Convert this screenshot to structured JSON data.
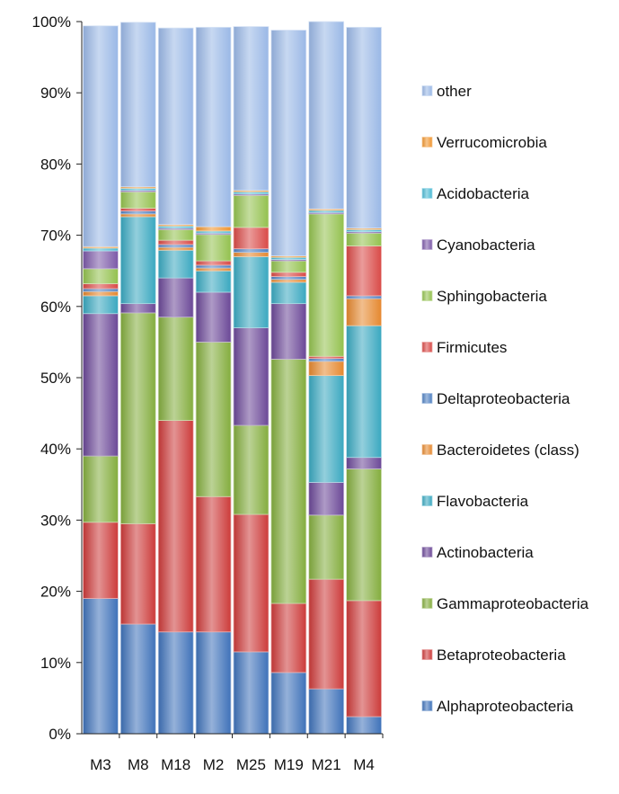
{
  "chart_data": {
    "type": "bar",
    "stacked": true,
    "orientation": "vertical",
    "categories": [
      "M3",
      "M8",
      "M18",
      "M2",
      "M25",
      "M19",
      "M21",
      "M4"
    ],
    "y_ticks": [
      "0%",
      "10%",
      "20%",
      "30%",
      "40%",
      "50%",
      "60%",
      "70%",
      "80%",
      "90%",
      "100%"
    ],
    "ylim": [
      0,
      100
    ],
    "grid": false,
    "legend_position": "right",
    "series": [
      {
        "name": "Alphaproteobacteria",
        "color": "#3f72b9",
        "values": [
          19,
          15.4,
          14.3,
          14.3,
          11.5,
          8.6,
          6.3,
          2.4
        ]
      },
      {
        "name": "Betaproteobacteria",
        "color": "#cc3b3a",
        "values": [
          10.7,
          14.1,
          29.7,
          19.0,
          19.3,
          9.7,
          15.4,
          16.3
        ]
      },
      {
        "name": "Gammaproteobacteria",
        "color": "#84ad3e",
        "values": [
          9.3,
          29.6,
          14.5,
          21.7,
          12.5,
          34.3,
          9.0,
          18.5
        ]
      },
      {
        "name": "Actinobacteria",
        "color": "#6b4897",
        "values": [
          20.0,
          1.3,
          5.5,
          7.0,
          13.7,
          7.8,
          4.6,
          1.6
        ]
      },
      {
        "name": "Flavobacteria",
        "color": "#3aa8c0",
        "values": [
          2.5,
          12.2,
          3.9,
          3.0,
          10.0,
          3.0,
          15.0,
          18.5
        ]
      },
      {
        "name": "Bacteroidetes (class)",
        "color": "#e5882f",
        "values": [
          0.6,
          0.4,
          0.4,
          0.4,
          0.6,
          0.4,
          2.0,
          3.8
        ]
      },
      {
        "name": "Deltaproteobacteria",
        "color": "#4f80c2",
        "values": [
          0.4,
          0.4,
          0.4,
          0.4,
          0.5,
          0.4,
          0.4,
          0.4
        ]
      },
      {
        "name": "Firmicutes",
        "color": "#d94a47",
        "values": [
          0.7,
          0.4,
          0.6,
          0.6,
          3.0,
          0.6,
          0.3,
          7.0
        ]
      },
      {
        "name": "Sphingobacteria",
        "color": "#93c14e",
        "values": [
          2.1,
          2.3,
          1.5,
          3.7,
          4.5,
          1.6,
          20.0,
          1.8
        ]
      },
      {
        "name": "Cyanobacteria",
        "color": "#7c59a8",
        "values": [
          2.5,
          0.2,
          0.2,
          0.2,
          0.2,
          0.2,
          0.2,
          0.2
        ]
      },
      {
        "name": "Acidobacteria",
        "color": "#4bb9d4",
        "values": [
          0.4,
          0.3,
          0.3,
          0.3,
          0.3,
          0.3,
          0.3,
          0.3
        ]
      },
      {
        "name": "Verrucomicrobia",
        "color": "#f0952f",
        "values": [
          0.2,
          0.2,
          0.2,
          0.6,
          0.2,
          0.2,
          0.2,
          0.2
        ]
      },
      {
        "name": "other",
        "color": "#9ab8e6",
        "values": [
          31.0,
          23.1,
          27.6,
          28.0,
          23.0,
          31.7,
          26.3,
          28.2
        ]
      }
    ]
  }
}
